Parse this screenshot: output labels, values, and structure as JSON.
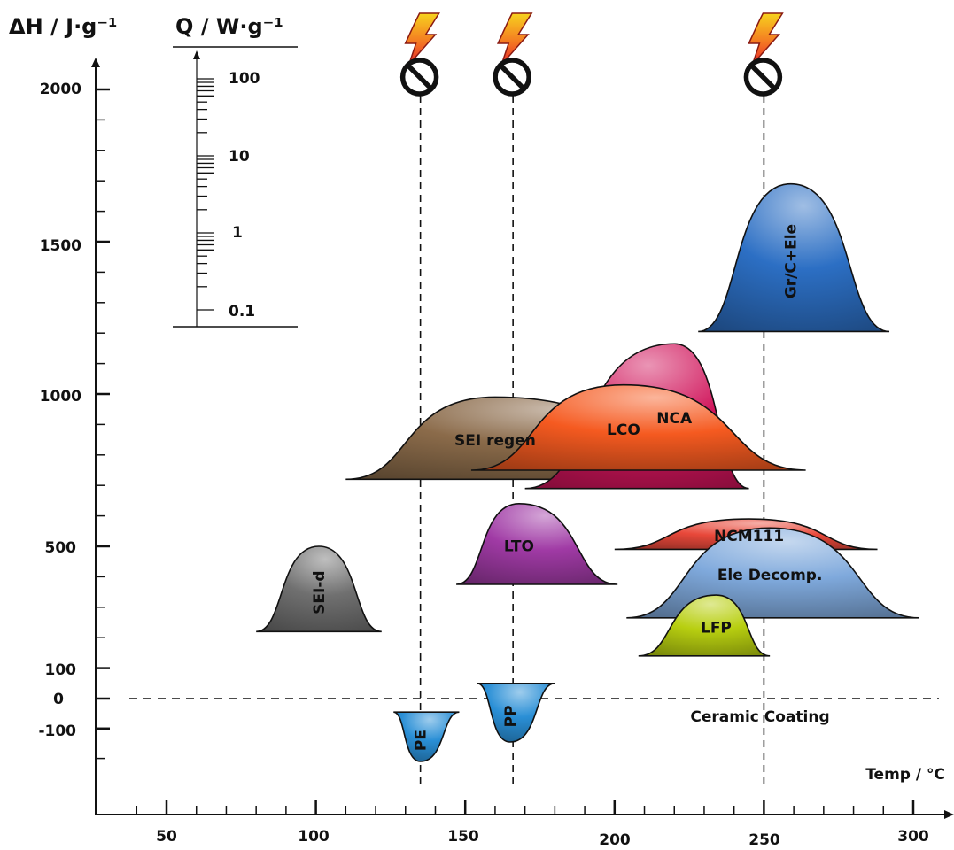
{
  "chart_data": {
    "type": "area",
    "ylabel": "ΔH / J·g⁻¹",
    "xlabel": "Temp / °C",
    "qlabel": "Q / W·g⁻¹",
    "xlim": [
      27,
      336
    ],
    "ylim": [
      -220,
      2100
    ],
    "x_ticks": [
      "50",
      "100",
      "150",
      "200",
      "250",
      "300"
    ],
    "y_ticks": [
      "2000",
      "1500",
      "1000",
      "500",
      "100",
      "0",
      "-100"
    ],
    "q_ticks": [
      "100",
      "10",
      "1",
      "0.1"
    ],
    "baseline_label": "Ceramic Coating",
    "separators": [
      {
        "name": "PE",
        "temp": 135
      },
      {
        "name": "PP",
        "temp": 166
      },
      {
        "name": "Ceramic",
        "temp": 250
      }
    ],
    "series": [
      {
        "name": "SEI-d",
        "color": "#707070",
        "x0": 80,
        "x1": 122,
        "peak_x": 101,
        "dh_peak": 500,
        "dh_base": 220,
        "rotate": true
      },
      {
        "name": "SEI regen",
        "color": "#8b6b4a",
        "x0": 110,
        "x1": 240,
        "peak_x": 160,
        "dh_peak": 990,
        "dh_base": 720,
        "rotate": false
      },
      {
        "name": "NCA",
        "color": "#d0145a",
        "x0": 170,
        "x1": 245,
        "peak_x": 220,
        "dh_peak": 1165,
        "dh_base": 690,
        "rotate": false
      },
      {
        "name": "LCO",
        "color": "#f55a20",
        "x0": 152,
        "x1": 264,
        "peak_x": 203,
        "dh_peak": 1030,
        "dh_base": 750,
        "rotate": false
      },
      {
        "name": "Gr/C+Ele",
        "color": "#2c6fc4",
        "x0": 228,
        "x1": 292,
        "peak_x": 259,
        "dh_peak": 1690,
        "dh_base": 1205,
        "rotate": true
      },
      {
        "name": "NCM111",
        "color": "#e8483a",
        "x0": 200,
        "x1": 288,
        "peak_x": 245,
        "dh_peak": 590,
        "dh_base": 490,
        "rotate": false
      },
      {
        "name": "LTO",
        "color": "#a03aa5",
        "x0": 147,
        "x1": 201,
        "peak_x": 168,
        "dh_peak": 640,
        "dh_base": 375,
        "rotate": false
      },
      {
        "name": "Ele Decomp.",
        "color": "#7fa9dc",
        "x0": 204,
        "x1": 302,
        "peak_x": 252,
        "dh_peak": 560,
        "dh_base": 265,
        "rotate": false
      },
      {
        "name": "LFP",
        "color": "#b8cf10",
        "x0": 208,
        "x1": 252,
        "peak_x": 234,
        "dh_peak": 340,
        "dh_base": 140,
        "rotate": false
      },
      {
        "name": "PE",
        "color": "#2a8fd6",
        "x0": 126,
        "x1": 148,
        "peak_x": 135,
        "dh_peak": -210,
        "dh_base": -45,
        "rotate": true
      },
      {
        "name": "PP",
        "color": "#2a8fd6",
        "x0": 154,
        "x1": 180,
        "peak_x": 165,
        "dh_peak": -145,
        "dh_base": 50,
        "rotate": true
      }
    ]
  }
}
